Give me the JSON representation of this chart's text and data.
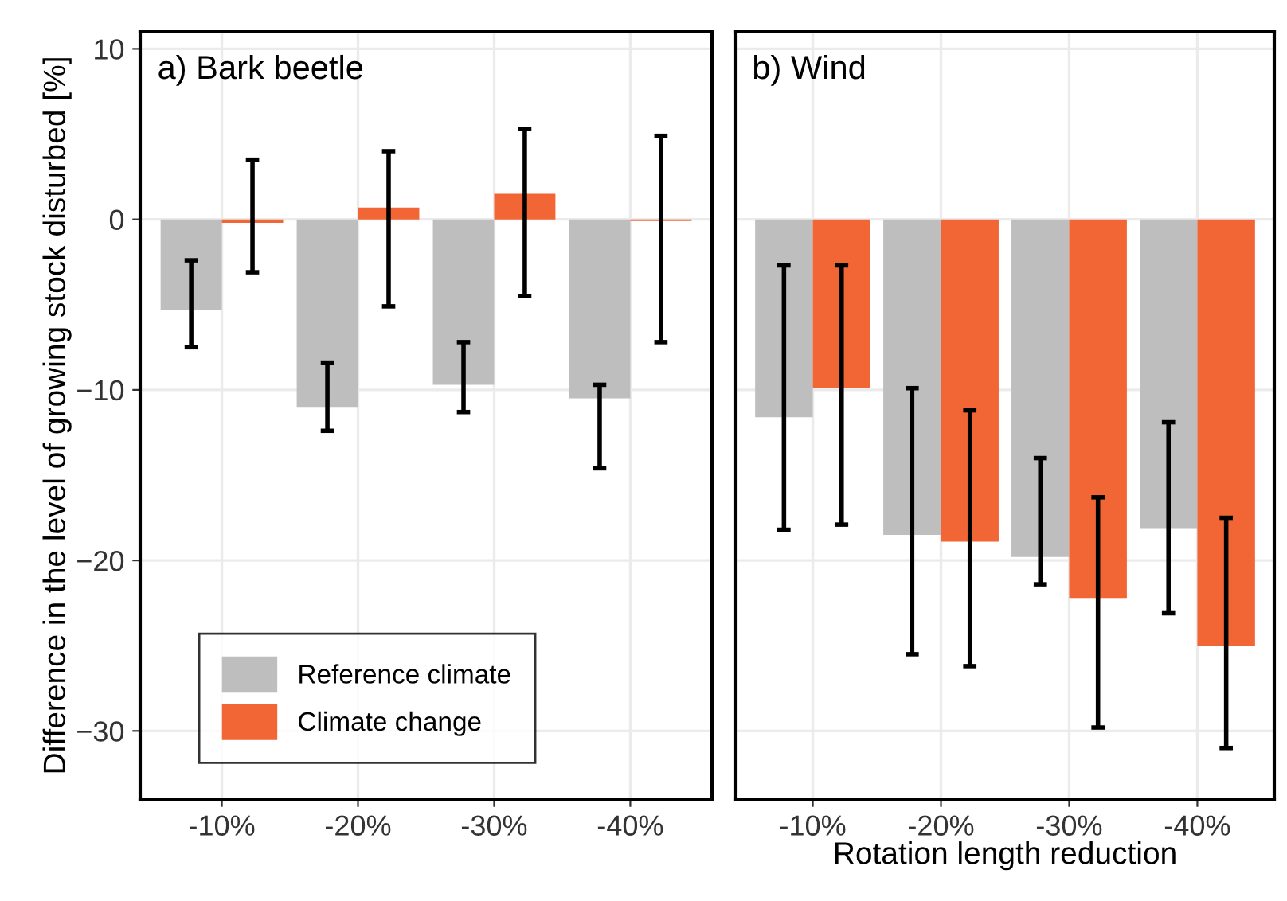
{
  "chart_data": [
    {
      "type": "bar",
      "title": "a) Bark beetle",
      "ylabel": "Difference in the level of growing stock disturbed [%]",
      "categories": [
        "-10%",
        "-20%",
        "-30%",
        "-40%"
      ],
      "series": [
        {
          "name": "Reference climate",
          "color": "#bebebe",
          "values": [
            -5.3,
            -11.0,
            -9.7,
            -10.5
          ],
          "errors": [
            [
              -7.5,
              -2.4
            ],
            [
              -12.4,
              -8.4
            ],
            [
              -11.3,
              -7.2
            ],
            [
              -14.6,
              -9.7
            ]
          ]
        },
        {
          "name": "Climate change",
          "color": "#f26535",
          "values": [
            -0.2,
            0.7,
            1.5,
            -0.1
          ],
          "errors": [
            [
              -3.1,
              3.5
            ],
            [
              -5.1,
              4.0
            ],
            [
              -4.5,
              5.3
            ],
            [
              -7.2,
              4.9
            ]
          ]
        }
      ],
      "ylim": [
        -34,
        11
      ],
      "yticks": [
        -30,
        -20,
        -10,
        0,
        10
      ],
      "grid": true,
      "legend": "bottom left"
    },
    {
      "type": "bar",
      "title": "b) Wind",
      "xlabel": "Rotation length reduction",
      "categories": [
        "-10%",
        "-20%",
        "-30%",
        "-40%"
      ],
      "series": [
        {
          "color": "#bebebe",
          "values": [
            -11.6,
            -18.5,
            -19.8,
            -18.1
          ],
          "errors": [
            [
              -18.2,
              -2.7
            ],
            [
              -25.5,
              -9.9
            ],
            [
              -21.4,
              -14.0
            ],
            [
              -23.1,
              -11.9
            ]
          ]
        },
        {
          "color": "#f26535",
          "values": [
            -9.9,
            -18.9,
            -22.2,
            -25.0
          ],
          "errors": [
            [
              -17.9,
              -2.7
            ],
            [
              -26.2,
              -11.2
            ],
            [
              -29.8,
              -16.3
            ],
            [
              -31.0,
              -17.5
            ]
          ]
        }
      ],
      "ylim": [
        -34,
        11
      ],
      "yticks": [
        -30,
        -20,
        -10,
        0,
        10
      ],
      "grid": true,
      "tick_labels": "x"
    }
  ]
}
